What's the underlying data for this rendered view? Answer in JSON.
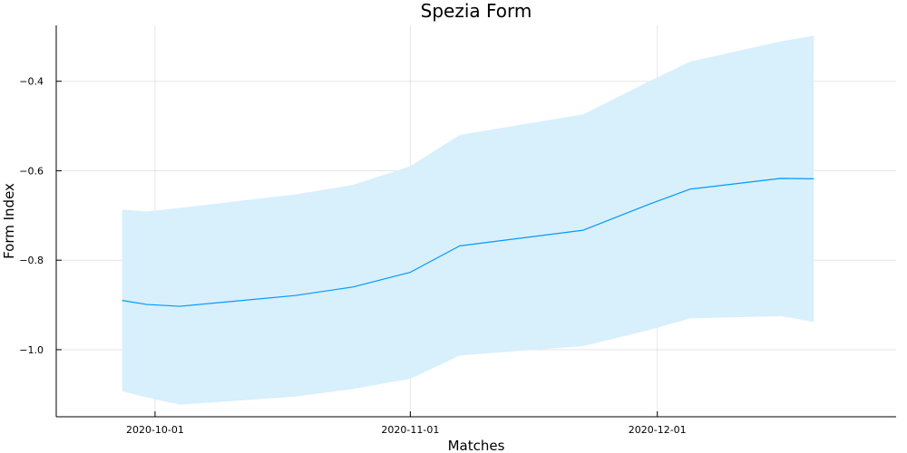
{
  "chart_data": {
    "type": "line",
    "title": "Spezia Form",
    "xlabel": "Matches",
    "ylabel": "Form Index",
    "grid": true,
    "legend": "none",
    "xlim": [
      "2020-09-19",
      "2020-12-30"
    ],
    "ylim": [
      -1.15,
      -0.275
    ],
    "x_ticks": [
      "2020-10-01",
      "2020-11-01",
      "2020-12-01"
    ],
    "y_ticks": [
      -1.0,
      -0.8,
      -0.6,
      -0.4
    ],
    "y_tick_labels": [
      "−1.0",
      "−0.8",
      "−0.6",
      "−0.4"
    ],
    "series": [
      {
        "color": "#009AFA",
        "band_color": "#D8EFFC",
        "x": [
          "2020-09-27",
          "2020-09-30",
          "2020-10-04",
          "2020-10-18",
          "2020-10-25",
          "2020-11-01",
          "2020-11-07",
          "2020-11-22",
          "2020-11-30",
          "2020-12-05",
          "2020-12-16",
          "2020-12-20"
        ],
        "y": [
          -0.89,
          -0.899,
          -0.903,
          -0.879,
          -0.86,
          -0.827,
          -0.768,
          -0.733,
          -0.675,
          -0.641,
          -0.617,
          -0.618
        ],
        "lower": [
          -1.093,
          -1.107,
          -1.123,
          -1.105,
          -1.088,
          -1.065,
          -1.013,
          -0.992,
          -0.956,
          -0.93,
          -0.925,
          -0.938
        ],
        "upper": [
          -0.687,
          -0.691,
          -0.683,
          -0.653,
          -0.632,
          -0.59,
          -0.52,
          -0.474,
          -0.4,
          -0.356,
          -0.311,
          -0.298
        ]
      }
    ]
  }
}
